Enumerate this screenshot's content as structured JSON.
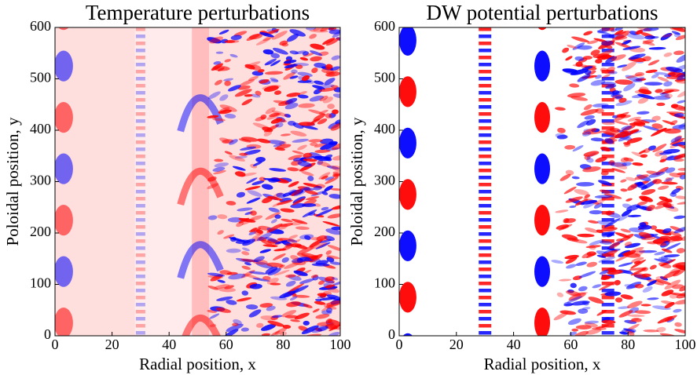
{
  "chart_data": [
    {
      "type": "heatmap",
      "title": "Temperature perturbations",
      "xlabel": "Radial position, x",
      "ylabel": "Poloidal position, y",
      "xlim": [
        0,
        100
      ],
      "ylim": [
        0,
        600
      ],
      "xticks": [
        0,
        20,
        40,
        60,
        80,
        100
      ],
      "yticks": [
        0,
        100,
        200,
        300,
        400,
        500,
        600
      ],
      "colormap": [
        "#0000ff",
        "#ffffff",
        "#ff0000"
      ]
    },
    {
      "type": "heatmap",
      "title": "DW potential perturbations",
      "xlabel": "Radial position, x",
      "ylabel": "Poloidal position, y",
      "xlim": [
        0,
        100
      ],
      "ylim": [
        0,
        600
      ],
      "xticks": [
        0,
        20,
        40,
        60,
        80,
        100
      ],
      "yticks": [
        0,
        100,
        200,
        300,
        400,
        500,
        600
      ],
      "colormap": [
        "#0000ff",
        "#ffffff",
        "#ff0000"
      ]
    }
  ]
}
